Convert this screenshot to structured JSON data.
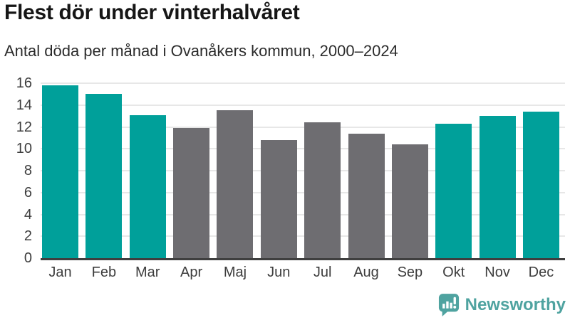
{
  "header": {
    "title": "Flest dör under vinterhalvåret",
    "subtitle": "Antal döda per månad i Ovanåkers kommun, 2000–2024"
  },
  "chart_data": {
    "type": "bar",
    "title": "Flest dör under vinterhalvåret",
    "subtitle": "Antal döda per månad i Ovanåkers kommun, 2000–2024",
    "categories": [
      "Jan",
      "Feb",
      "Mar",
      "Apr",
      "Maj",
      "Jun",
      "Jul",
      "Aug",
      "Sep",
      "Okt",
      "Nov",
      "Dec"
    ],
    "values": [
      15.8,
      15.0,
      13.1,
      11.9,
      13.5,
      10.8,
      12.4,
      11.4,
      10.4,
      12.3,
      13.0,
      13.4
    ],
    "groups": [
      "winter",
      "winter",
      "winter",
      "summer",
      "summer",
      "summer",
      "summer",
      "summer",
      "summer",
      "winter",
      "winter",
      "winter"
    ],
    "colors": {
      "winter": "#00a09a",
      "summer": "#6e6d71"
    },
    "xlabel": "",
    "ylabel": "",
    "ylim": [
      0,
      16
    ],
    "yticks": [
      0,
      2,
      4,
      6,
      8,
      10,
      12,
      14,
      16
    ],
    "grid": true,
    "legend": false
  },
  "footer": {
    "brand": "Newsworthy",
    "brand_color": "#4fa3a0"
  },
  "colors": {
    "teal_bar": "#00a09a",
    "gray_bar": "#6e6d71",
    "gridline": "#e7e7e7",
    "axis_line": "#3f3f3f",
    "title_text": "#161616",
    "tick_text": "#3d3d3d"
  }
}
